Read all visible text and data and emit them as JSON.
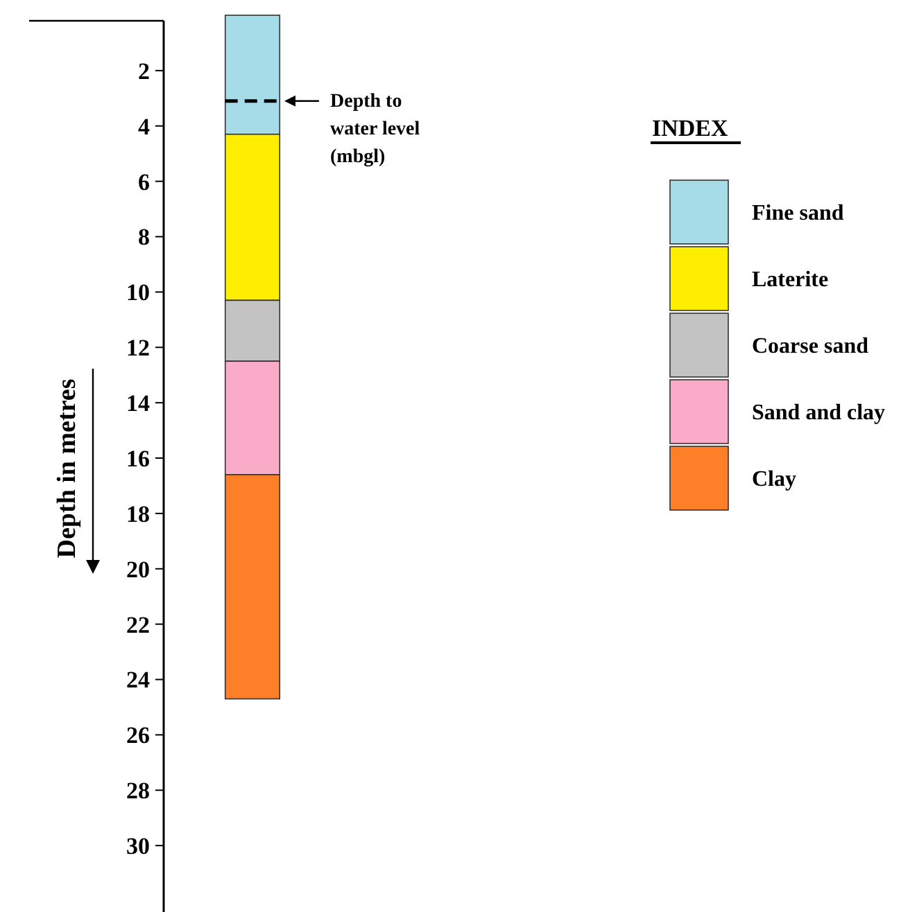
{
  "chart_data": {
    "type": "bar",
    "stacked": true,
    "ylabel": "Depth in metres",
    "legend_title": "INDEX",
    "legend": "right",
    "tick_labels": "y",
    "grid": false,
    "categories": [
      null
    ],
    "ylim": [
      32.4,
      0
    ],
    "yticks": [
      2,
      4,
      6,
      8,
      10,
      12,
      14,
      16,
      18,
      20,
      22,
      24,
      26,
      28,
      30
    ],
    "series": [
      {
        "name": "Fine sand",
        "color": "#a6dbe8",
        "values": [
          4.3
        ]
      },
      {
        "name": "Laterite",
        "color": "#ffee00",
        "values": [
          6.0
        ]
      },
      {
        "name": "Coarse sand",
        "color": "#c3c3c3",
        "values": [
          2.2
        ]
      },
      {
        "name": "Sand and clay",
        "color": "#f9abc8",
        "values": [
          4.1
        ]
      },
      {
        "name": "Clay",
        "color": "#fd7f28",
        "values": [
          8.1
        ]
      }
    ],
    "ref_lines": [
      {
        "axis": "y",
        "value": 3.1,
        "label": "Depth to water level (mbgl)",
        "line_style": "dashed",
        "color": "#000000"
      }
    ]
  }
}
